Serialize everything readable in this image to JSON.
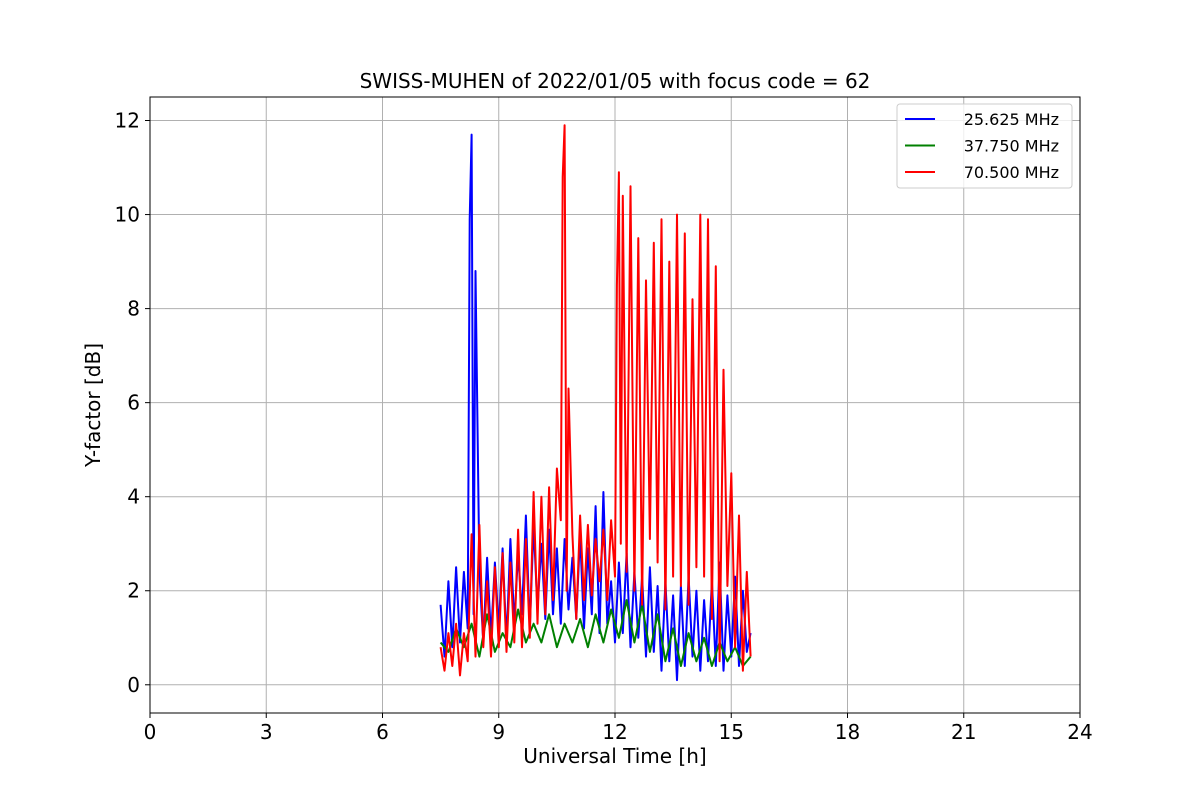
{
  "chart_data": {
    "type": "line",
    "title": "SWISS-MUHEN of 2022/01/05 with focus code = 62",
    "xlabel": "Universal Time [h]",
    "ylabel": "Y-factor [dB]",
    "xlim": [
      0,
      24
    ],
    "ylim": [
      -0.6,
      12.5
    ],
    "xticks": [
      "0",
      "3",
      "6",
      "9",
      "12",
      "15",
      "18",
      "21",
      "24"
    ],
    "yticks": [
      "0",
      "2",
      "4",
      "6",
      "8",
      "10",
      "12"
    ],
    "grid": true,
    "legend_position": "top-right",
    "series": [
      {
        "name": "25.625 MHz",
        "color": "#0000ff",
        "x": [
          7.5,
          7.6,
          7.7,
          7.8,
          7.9,
          8.0,
          8.1,
          8.2,
          8.25,
          8.3,
          8.35,
          8.4,
          8.5,
          8.6,
          8.7,
          8.8,
          8.9,
          9.0,
          9.1,
          9.2,
          9.3,
          9.4,
          9.5,
          9.6,
          9.7,
          9.8,
          9.9,
          10.0,
          10.1,
          10.2,
          10.3,
          10.4,
          10.5,
          10.6,
          10.7,
          10.8,
          10.9,
          11.0,
          11.1,
          11.2,
          11.3,
          11.4,
          11.5,
          11.6,
          11.7,
          11.8,
          11.9,
          12.0,
          12.1,
          12.2,
          12.3,
          12.4,
          12.5,
          12.6,
          12.7,
          12.8,
          12.9,
          13.0,
          13.1,
          13.2,
          13.3,
          13.4,
          13.5,
          13.6,
          13.7,
          13.8,
          13.9,
          14.0,
          14.1,
          14.2,
          14.3,
          14.4,
          14.5,
          14.6,
          14.7,
          14.8,
          14.9,
          15.0,
          15.1,
          15.2,
          15.3,
          15.4,
          15.5
        ],
        "y": [
          1.7,
          0.6,
          2.2,
          0.8,
          2.5,
          0.9,
          2.4,
          1.2,
          9.9,
          11.7,
          1.5,
          8.8,
          2.4,
          0.9,
          2.7,
          1.0,
          2.6,
          1.2,
          2.9,
          0.9,
          3.1,
          1.3,
          2.8,
          1.5,
          3.6,
          1.2,
          3.4,
          1.6,
          3.0,
          1.4,
          3.3,
          1.5,
          2.9,
          1.3,
          3.1,
          1.6,
          2.7,
          1.4,
          3.2,
          1.2,
          2.9,
          1.5,
          3.8,
          1.1,
          4.1,
          1.3,
          2.2,
          0.9,
          2.6,
          1.1,
          2.8,
          0.8,
          2.4,
          1.0,
          2.3,
          0.6,
          2.5,
          0.7,
          2.1,
          0.3,
          2.2,
          0.5,
          1.9,
          0.1,
          2.1,
          0.4,
          2.3,
          0.6,
          2.0,
          0.3,
          1.8,
          0.5,
          2.2,
          0.4,
          2.6,
          0.3,
          1.9,
          0.6,
          2.3,
          0.4,
          2.0,
          0.7,
          1.1
        ]
      },
      {
        "name": "37.750 MHz",
        "color": "#008000",
        "x": [
          7.5,
          7.7,
          7.9,
          8.1,
          8.3,
          8.5,
          8.7,
          8.9,
          9.1,
          9.3,
          9.5,
          9.7,
          9.9,
          10.1,
          10.3,
          10.5,
          10.7,
          10.9,
          11.1,
          11.3,
          11.5,
          11.7,
          11.9,
          12.1,
          12.3,
          12.5,
          12.7,
          12.9,
          13.1,
          13.3,
          13.5,
          13.7,
          13.9,
          14.1,
          14.3,
          14.5,
          14.7,
          14.9,
          15.1,
          15.3,
          15.5
        ],
        "y": [
          0.9,
          0.7,
          1.2,
          0.8,
          1.3,
          0.6,
          1.5,
          0.7,
          1.1,
          0.8,
          1.6,
          0.9,
          1.3,
          0.9,
          1.5,
          0.8,
          1.3,
          0.9,
          1.4,
          0.8,
          1.5,
          0.9,
          1.6,
          1.0,
          1.8,
          0.9,
          1.7,
          0.7,
          1.5,
          0.5,
          1.2,
          0.4,
          1.1,
          0.5,
          1.0,
          0.4,
          0.9,
          0.5,
          0.8,
          0.4,
          0.6
        ]
      },
      {
        "name": "70.500 MHz",
        "color": "#ff0000",
        "x": [
          7.5,
          7.6,
          7.7,
          7.8,
          7.9,
          8.0,
          8.1,
          8.2,
          8.3,
          8.4,
          8.5,
          8.6,
          8.7,
          8.8,
          8.9,
          9.0,
          9.1,
          9.2,
          9.3,
          9.4,
          9.5,
          9.6,
          9.7,
          9.8,
          9.9,
          10.0,
          10.1,
          10.2,
          10.3,
          10.4,
          10.5,
          10.6,
          10.65,
          10.7,
          10.75,
          10.8,
          10.9,
          11.0,
          11.1,
          11.2,
          11.3,
          11.4,
          11.5,
          11.6,
          11.7,
          11.8,
          11.9,
          12.0,
          12.05,
          12.1,
          12.15,
          12.2,
          12.3,
          12.4,
          12.5,
          12.6,
          12.7,
          12.8,
          12.9,
          13.0,
          13.1,
          13.2,
          13.3,
          13.4,
          13.5,
          13.6,
          13.7,
          13.8,
          13.9,
          14.0,
          14.1,
          14.2,
          14.3,
          14.4,
          14.5,
          14.6,
          14.7,
          14.8,
          14.9,
          15.0,
          15.1,
          15.2,
          15.3,
          15.4,
          15.5
        ],
        "y": [
          0.8,
          0.3,
          1.1,
          0.4,
          1.3,
          0.2,
          1.1,
          0.5,
          3.2,
          0.6,
          3.4,
          0.8,
          2.2,
          0.6,
          2.5,
          0.8,
          2.8,
          0.7,
          2.6,
          0.9,
          3.3,
          0.8,
          3.1,
          1.0,
          4.1,
          1.3,
          4.0,
          1.5,
          4.2,
          1.8,
          4.6,
          3.5,
          10.8,
          11.9,
          2.0,
          6.3,
          3.2,
          1.4,
          3.6,
          1.8,
          3.4,
          1.9,
          3.1,
          2.2,
          3.3,
          1.8,
          3.5,
          2.3,
          8.5,
          10.9,
          3.0,
          10.4,
          2.4,
          10.6,
          2.0,
          9.5,
          1.7,
          8.6,
          3.1,
          9.4,
          2.6,
          9.9,
          1.6,
          9.0,
          2.3,
          10.0,
          2.1,
          9.6,
          1.7,
          8.2,
          2.5,
          10.0,
          2.3,
          9.9,
          1.4,
          8.9,
          0.5,
          6.7,
          2.1,
          4.5,
          0.8,
          3.6,
          0.3,
          2.4,
          0.6
        ]
      }
    ]
  }
}
